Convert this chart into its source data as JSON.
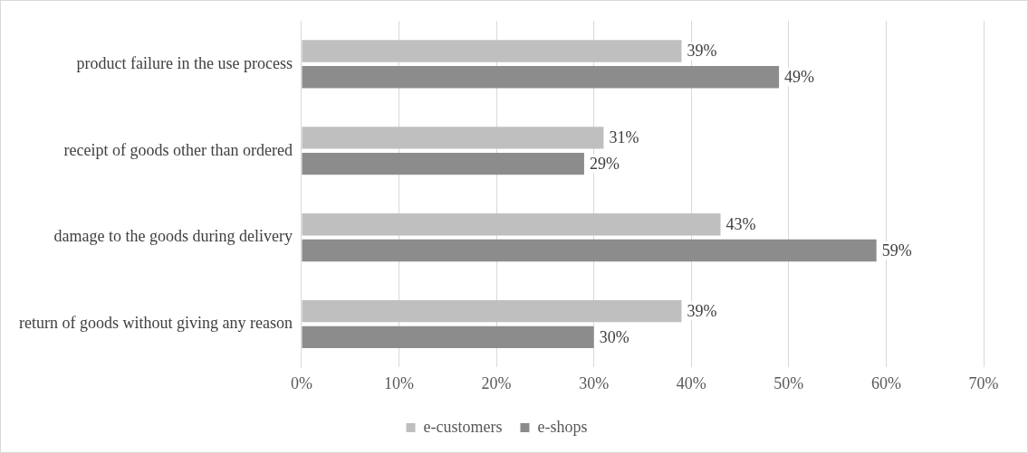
{
  "chart_data": {
    "type": "bar",
    "orientation": "horizontal",
    "categories": [
      "product failure in the use process",
      "receipt of goods other than ordered",
      "damage to the goods during delivery",
      "return of goods without giving any reason"
    ],
    "series": [
      {
        "name": "e-customers",
        "color": "#bfbfbf",
        "values": [
          39,
          31,
          43,
          39
        ],
        "value_labels": [
          "39%",
          "31%",
          "43%",
          "39%"
        ]
      },
      {
        "name": "e-shops",
        "color": "#8c8c8c",
        "values": [
          49,
          29,
          59,
          30
        ],
        "value_labels": [
          "49%",
          "29%",
          "59%",
          "30%"
        ]
      }
    ],
    "xlim": [
      0,
      70
    ],
    "xticks": [
      {
        "value": 0,
        "label": "0%"
      },
      {
        "value": 10,
        "label": "10%"
      },
      {
        "value": 20,
        "label": "20%"
      },
      {
        "value": 30,
        "label": "30%"
      },
      {
        "value": 40,
        "label": "40%"
      },
      {
        "value": 50,
        "label": "50%"
      },
      {
        "value": 60,
        "label": "60%"
      },
      {
        "value": 70,
        "label": "70%"
      }
    ],
    "grid": "x",
    "legend": "bottom"
  }
}
